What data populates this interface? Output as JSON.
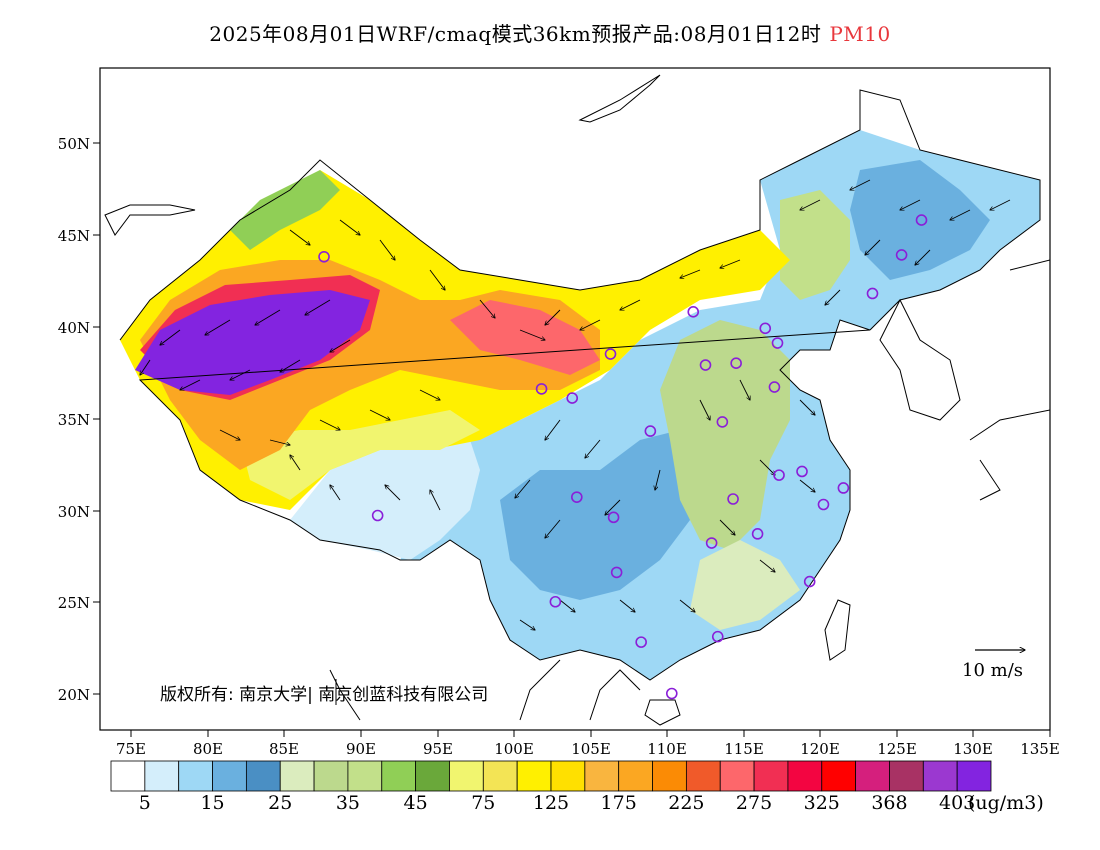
{
  "title": {
    "main": "2025年08月01日WRF/cmaq模式36km预报产品:08月01日12时",
    "pollutant": "PM10",
    "pollutant_color": "#e8373c"
  },
  "axes": {
    "lat_labels": [
      "50N",
      "45N",
      "40N",
      "35N",
      "30N",
      "25N",
      "20N"
    ],
    "lon_labels": [
      "75E",
      "80E",
      "85E",
      "90E",
      "95E",
      "100E",
      "105E",
      "110E",
      "115E",
      "120E",
      "125E",
      "130E",
      "135E"
    ]
  },
  "colorbar": {
    "colors": [
      "#ffffff",
      "#d4eefb",
      "#9ed8f5",
      "#6ab0df",
      "#4a8fc4",
      "#dbecbe",
      "#bcd98d",
      "#c2e08a",
      "#90cf56",
      "#6aa83a",
      "#f1f56f",
      "#f3e455",
      "#fff000",
      "#ffe000",
      "#f9b53f",
      "#fba722",
      "#fb8b05",
      "#f05a2a",
      "#fd676b",
      "#f12f53",
      "#f30541",
      "#ff0000",
      "#d51f7d",
      "#a83264",
      "#9b38d0",
      "#8324e0"
    ],
    "labels": [
      "5",
      "15",
      "25",
      "35",
      "45",
      "75",
      "125",
      "175",
      "225",
      "275",
      "325",
      "368",
      "403"
    ],
    "unit": "(ug/m3)"
  },
  "legend": {
    "wind_scale": "10 m/s"
  },
  "copyright": "版权所有: 南京大学| 南京创蓝科技有限公司",
  "stations": [
    [
      87.6,
      43.8
    ],
    [
      91.1,
      29.7
    ],
    [
      101.8,
      36.6
    ],
    [
      103.8,
      36.1
    ],
    [
      106.3,
      38.5
    ],
    [
      111.7,
      40.8
    ],
    [
      116.4,
      39.9
    ],
    [
      117.2,
      39.1
    ],
    [
      112.5,
      37.9
    ],
    [
      114.5,
      38.0
    ],
    [
      117.0,
      36.7
    ],
    [
      113.6,
      34.8
    ],
    [
      108.9,
      34.3
    ],
    [
      104.1,
      30.7
    ],
    [
      106.5,
      29.6
    ],
    [
      106.7,
      26.6
    ],
    [
      102.7,
      25.0
    ],
    [
      108.3,
      22.8
    ],
    [
      113.3,
      23.1
    ],
    [
      110.3,
      20.0
    ],
    [
      112.9,
      28.2
    ],
    [
      114.3,
      30.6
    ],
    [
      115.9,
      28.7
    ],
    [
      117.3,
      31.9
    ],
    [
      118.8,
      32.1
    ],
    [
      120.2,
      30.3
    ],
    [
      121.5,
      31.2
    ],
    [
      119.3,
      26.1
    ],
    [
      123.4,
      41.8
    ],
    [
      125.3,
      43.9
    ],
    [
      126.6,
      45.8
    ]
  ]
}
